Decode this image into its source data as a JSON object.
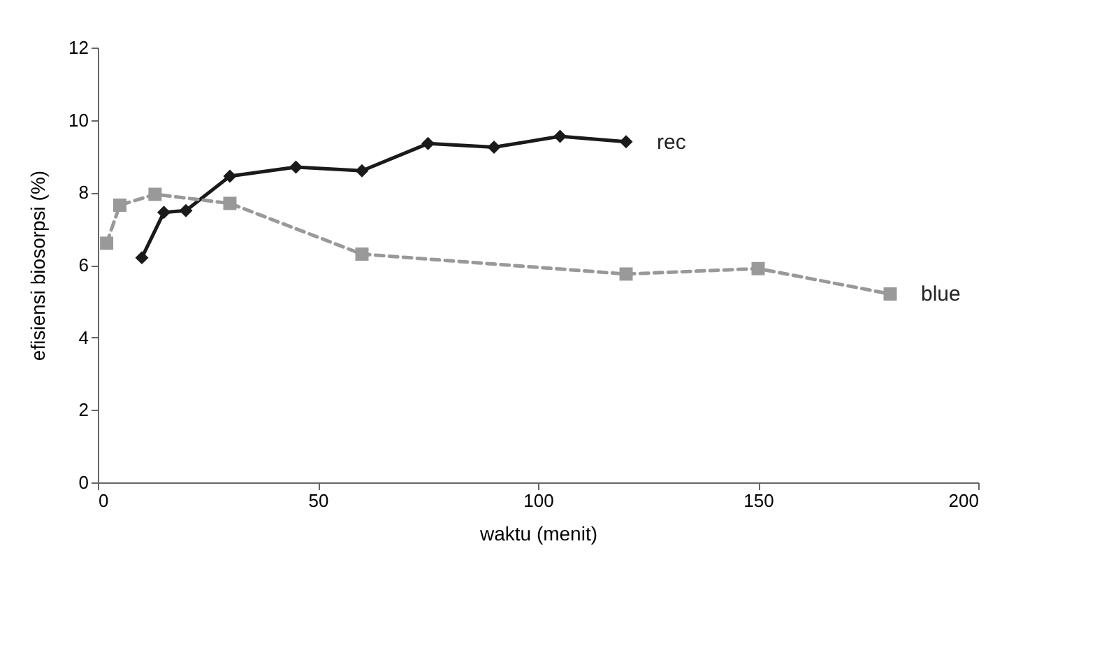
{
  "chart_data": {
    "type": "line",
    "xlabel": "waktu (menit)",
    "ylabel": "efisiensi biosorpsi (%)",
    "xlim": [
      0,
      200
    ],
    "xticks": [
      0,
      50,
      100,
      150,
      200
    ],
    "ylim": [
      0,
      12
    ],
    "yticks": [
      0,
      2,
      4,
      6,
      8,
      10,
      12
    ],
    "grid": false,
    "series": [
      {
        "name": "rec",
        "color": "#1a1a1a",
        "marker": "diamond",
        "line_style": "solid",
        "x": [
          10,
          15,
          20,
          30,
          45,
          60,
          75,
          90,
          105,
          120
        ],
        "values": [
          6.2,
          7.45,
          7.5,
          8.45,
          8.7,
          8.6,
          9.35,
          9.25,
          9.55,
          9.4
        ]
      },
      {
        "name": "blue",
        "color": "#999999",
        "marker": "square",
        "line_style": "dashed",
        "x": [
          2,
          5,
          13,
          30,
          60,
          120,
          150,
          180
        ],
        "values": [
          6.6,
          7.65,
          7.95,
          7.7,
          6.3,
          5.75,
          5.9,
          5.2
        ]
      }
    ]
  }
}
